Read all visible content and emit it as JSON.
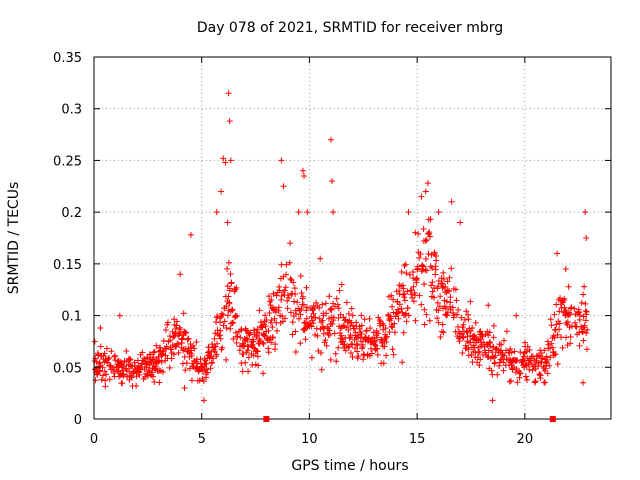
{
  "chart_data": {
    "type": "scatter",
    "title": "Day 078 of 2021, SRMTID for receiver mbrg",
    "xlabel": "GPS time / hours",
    "ylabel": "SRMTID / TECUs",
    "xlim": [
      0,
      24
    ],
    "ylim": [
      0,
      0.35
    ],
    "xticks": [
      "0",
      "5",
      "10",
      "15",
      "20"
    ],
    "yticks": [
      "0",
      "0.05",
      "0.1",
      "0.15",
      "0.2",
      "0.25",
      "0.3",
      "0.35"
    ],
    "grid": true,
    "marker": "+",
    "color": "#ff0000",
    "gap_markers_x": [
      8.0,
      21.3
    ],
    "trend": [
      [
        0,
        0.055
      ],
      [
        1,
        0.052
      ],
      [
        2,
        0.048
      ],
      [
        3,
        0.055
      ],
      [
        3.5,
        0.07
      ],
      [
        4,
        0.085
      ],
      [
        4.5,
        0.06
      ],
      [
        5,
        0.05
      ],
      [
        5.5,
        0.06
      ],
      [
        6,
        0.09
      ],
      [
        6.3,
        0.12
      ],
      [
        6.8,
        0.075
      ],
      [
        7.5,
        0.07
      ],
      [
        8,
        0.085
      ],
      [
        8.5,
        0.11
      ],
      [
        9,
        0.12
      ],
      [
        9.5,
        0.11
      ],
      [
        10,
        0.1
      ],
      [
        10.5,
        0.09
      ],
      [
        11,
        0.1
      ],
      [
        11.5,
        0.09
      ],
      [
        12,
        0.08
      ],
      [
        12.5,
        0.075
      ],
      [
        13,
        0.075
      ],
      [
        13.5,
        0.08
      ],
      [
        14,
        0.1
      ],
      [
        14.5,
        0.12
      ],
      [
        15,
        0.145
      ],
      [
        15.5,
        0.15
      ],
      [
        16,
        0.125
      ],
      [
        16.5,
        0.11
      ],
      [
        17,
        0.09
      ],
      [
        17.5,
        0.08
      ],
      [
        18,
        0.075
      ],
      [
        18.5,
        0.065
      ],
      [
        19,
        0.06
      ],
      [
        19.5,
        0.055
      ],
      [
        20,
        0.055
      ],
      [
        20.5,
        0.05
      ],
      [
        21,
        0.055
      ],
      [
        21.5,
        0.095
      ],
      [
        22,
        0.1
      ],
      [
        22.5,
        0.1
      ],
      [
        22.9,
        0.09
      ]
    ],
    "highlights": [
      [
        0.3,
        0.088
      ],
      [
        1.2,
        0.1
      ],
      [
        4.0,
        0.14
      ],
      [
        4.5,
        0.178
      ],
      [
        5.7,
        0.2
      ],
      [
        5.9,
        0.22
      ],
      [
        6.0,
        0.252
      ],
      [
        6.1,
        0.248
      ],
      [
        6.25,
        0.315
      ],
      [
        6.3,
        0.288
      ],
      [
        6.35,
        0.25
      ],
      [
        6.2,
        0.19
      ],
      [
        8.7,
        0.25
      ],
      [
        8.8,
        0.225
      ],
      [
        9.1,
        0.17
      ],
      [
        9.5,
        0.2
      ],
      [
        9.7,
        0.24
      ],
      [
        9.75,
        0.235
      ],
      [
        9.9,
        0.2
      ],
      [
        10.5,
        0.155
      ],
      [
        11.0,
        0.27
      ],
      [
        11.05,
        0.23
      ],
      [
        11.1,
        0.2
      ],
      [
        11.5,
        0.13
      ],
      [
        14.6,
        0.2
      ],
      [
        15.2,
        0.215
      ],
      [
        15.4,
        0.22
      ],
      [
        15.5,
        0.228
      ],
      [
        16.0,
        0.2
      ],
      [
        16.6,
        0.21
      ],
      [
        17.0,
        0.19
      ],
      [
        18.3,
        0.11
      ],
      [
        19.6,
        0.1
      ],
      [
        21.5,
        0.16
      ],
      [
        21.9,
        0.145
      ],
      [
        22.8,
        0.2
      ],
      [
        22.85,
        0.175
      ],
      [
        22.7,
        0.035
      ],
      [
        18.5,
        0.018
      ],
      [
        4.2,
        0.03
      ],
      [
        5.1,
        0.018
      ]
    ]
  }
}
